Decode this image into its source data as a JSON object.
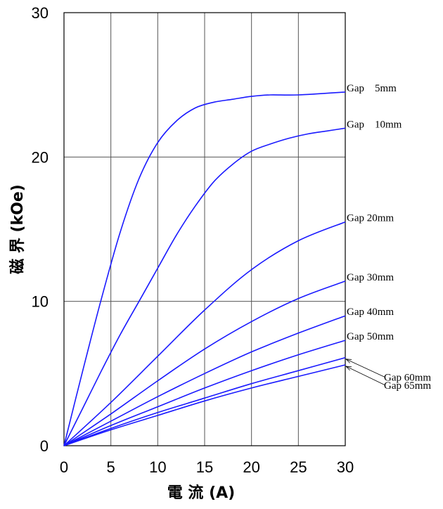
{
  "chart_data": {
    "type": "line",
    "xlabel": "電 流 (A)",
    "ylabel": "磁 界 (kOe)",
    "xlim": [
      0,
      30
    ],
    "ylim": [
      0,
      30
    ],
    "x_ticks": [
      "0",
      "5",
      "10",
      "15",
      "20",
      "25",
      "30"
    ],
    "y_ticks": [
      "0",
      "10",
      "20",
      "30"
    ],
    "grid": true,
    "line_color": "#1a1aff",
    "grid_color": "#555555",
    "series": [
      {
        "name": "Gap　5mm",
        "x": [
          0,
          2,
          4,
          6,
          8,
          10,
          12,
          14,
          16,
          18,
          20,
          22,
          25,
          30
        ],
        "y": [
          0,
          5.2,
          10.2,
          14.8,
          18.5,
          21.0,
          22.5,
          23.4,
          23.8,
          24.0,
          24.2,
          24.3,
          24.3,
          24.5
        ]
      },
      {
        "name": "Gap　10mm",
        "x": [
          0,
          2,
          4,
          6,
          8,
          10,
          12,
          14,
          16,
          18,
          20,
          22,
          24,
          26,
          28,
          30
        ],
        "y": [
          0,
          2.6,
          5.2,
          7.7,
          10.0,
          12.3,
          14.6,
          16.6,
          18.3,
          19.5,
          20.4,
          20.9,
          21.3,
          21.6,
          21.8,
          22.0
        ]
      },
      {
        "name": "Gap 20mm",
        "x": [
          0,
          5,
          10,
          15,
          20,
          25,
          30
        ],
        "y": [
          0,
          3.0,
          6.2,
          9.4,
          12.2,
          14.2,
          15.5
        ]
      },
      {
        "name": "Gap 30mm",
        "x": [
          0,
          5,
          10,
          15,
          20,
          25,
          30
        ],
        "y": [
          0,
          2.2,
          4.5,
          6.7,
          8.6,
          10.2,
          11.4
        ]
      },
      {
        "name": "Gap 40mm",
        "x": [
          0,
          5,
          10,
          15,
          20,
          25,
          30
        ],
        "y": [
          0,
          1.7,
          3.4,
          5.0,
          6.5,
          7.8,
          9.0
        ]
      },
      {
        "name": "Gap 50mm",
        "x": [
          0,
          5,
          10,
          15,
          20,
          25,
          30
        ],
        "y": [
          0,
          1.4,
          2.7,
          4.0,
          5.2,
          6.3,
          7.3
        ]
      },
      {
        "name": "Gap 60mm",
        "x": [
          0,
          5,
          10,
          15,
          20,
          25,
          30
        ],
        "y": [
          0,
          1.2,
          2.3,
          3.3,
          4.3,
          5.2,
          6.1
        ]
      },
      {
        "name": "Gap 65mm",
        "x": [
          0,
          5,
          10,
          15,
          20,
          25,
          30
        ],
        "y": [
          0,
          1.1,
          2.1,
          3.1,
          4.0,
          4.8,
          5.6
        ]
      }
    ]
  }
}
